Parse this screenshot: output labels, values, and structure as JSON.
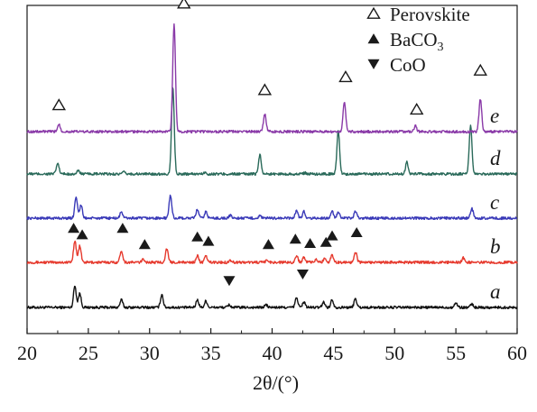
{
  "chart_data": {
    "type": "line",
    "title": "",
    "xlabel": "2θ/(°)",
    "ylabel": "",
    "xlim": [
      20,
      60
    ],
    "xticks": [
      "20",
      "25",
      "30",
      "35",
      "40",
      "45",
      "50",
      "55",
      "60"
    ],
    "grid": false,
    "legend_placement": "top-right",
    "legend": [
      {
        "label": "Perovskite",
        "marker": "open-triangle-up"
      },
      {
        "label": "BaCO",
        "sub": "3",
        "marker": "filled-triangle-up"
      },
      {
        "label": "CoO",
        "marker": "filled-triangle-down"
      }
    ],
    "series": [
      {
        "name": "a",
        "color": "#111111",
        "baseline_row": 0,
        "peaks": [
          [
            23.9,
            1.0
          ],
          [
            24.3,
            0.65
          ],
          [
            27.7,
            0.35
          ],
          [
            31.0,
            0.6
          ],
          [
            33.9,
            0.35
          ],
          [
            34.6,
            0.3
          ],
          [
            36.5,
            0.12
          ],
          [
            39.5,
            0.12
          ],
          [
            42.0,
            0.45
          ],
          [
            42.6,
            0.25
          ],
          [
            44.2,
            0.25
          ],
          [
            44.9,
            0.35
          ],
          [
            46.8,
            0.4
          ],
          [
            55.0,
            0.22
          ],
          [
            56.3,
            0.15
          ]
        ]
      },
      {
        "name": "b",
        "color": "#e63a2e",
        "baseline_row": 1,
        "peaks": [
          [
            23.9,
            1.0
          ],
          [
            24.3,
            0.75
          ],
          [
            27.7,
            0.55
          ],
          [
            29.5,
            0.15
          ],
          [
            31.4,
            0.62
          ],
          [
            33.9,
            0.3
          ],
          [
            34.6,
            0.28
          ],
          [
            36.6,
            0.1
          ],
          [
            39.6,
            0.1
          ],
          [
            42.0,
            0.3
          ],
          [
            42.6,
            0.25
          ],
          [
            43.6,
            0.12
          ],
          [
            44.3,
            0.2
          ],
          [
            44.9,
            0.35
          ],
          [
            46.8,
            0.5
          ],
          [
            55.6,
            0.2
          ]
        ]
      },
      {
        "name": "c",
        "color": "#3a3ab8",
        "baseline_row": 2,
        "peaks": [
          [
            24.0,
            1.0
          ],
          [
            24.4,
            0.6
          ],
          [
            27.7,
            0.3
          ],
          [
            31.7,
            1.05
          ],
          [
            33.9,
            0.4
          ],
          [
            34.6,
            0.3
          ],
          [
            36.6,
            0.12
          ],
          [
            39.0,
            0.1
          ],
          [
            42.0,
            0.35
          ],
          [
            42.6,
            0.3
          ],
          [
            44.9,
            0.3
          ],
          [
            45.4,
            0.25
          ],
          [
            46.8,
            0.3
          ],
          [
            56.3,
            0.45
          ]
        ]
      },
      {
        "name": "d",
        "color": "#2a6a5a",
        "baseline_row": 3,
        "peaks": [
          [
            22.5,
            0.5
          ],
          [
            24.2,
            0.15
          ],
          [
            27.9,
            0.08
          ],
          [
            31.9,
            4.0
          ],
          [
            34.5,
            0.06
          ],
          [
            39.0,
            0.9
          ],
          [
            42.7,
            0.05
          ],
          [
            45.4,
            2.0
          ],
          [
            51.0,
            0.55
          ],
          [
            56.2,
            2.2
          ]
        ]
      },
      {
        "name": "e",
        "color": "#8a3aa8",
        "baseline_row": 4,
        "peaks": [
          [
            22.6,
            0.35
          ],
          [
            32.0,
            5.0
          ],
          [
            39.4,
            0.8
          ],
          [
            45.9,
            1.4
          ],
          [
            51.7,
            0.25
          ],
          [
            57.0,
            1.5
          ]
        ]
      }
    ],
    "markers": [
      {
        "type": "perovskite",
        "x": 22.6,
        "y_row": 4,
        "h": 0.9
      },
      {
        "type": "perovskite",
        "x": 32.8,
        "y_row": 4,
        "h": 5.6
      },
      {
        "type": "perovskite",
        "x": 39.4,
        "y_row": 4,
        "h": 1.6
      },
      {
        "type": "perovskite",
        "x": 46.0,
        "y_row": 4,
        "h": 2.2
      },
      {
        "type": "perovskite",
        "x": 51.8,
        "y_row": 4,
        "h": 0.7
      },
      {
        "type": "perovskite",
        "x": 57.0,
        "y_row": 4,
        "h": 2.5
      },
      {
        "type": "baco3",
        "x": 23.8,
        "y_row": 1,
        "h": 1.25
      },
      {
        "type": "baco3",
        "x": 24.5,
        "y_row": 1,
        "h": 0.95
      },
      {
        "type": "baco3",
        "x": 27.8,
        "y_row": 1,
        "h": 1.25
      },
      {
        "type": "baco3",
        "x": 29.6,
        "y_row": 1,
        "h": 0.5
      },
      {
        "type": "baco3",
        "x": 33.9,
        "y_row": 1,
        "h": 0.85
      },
      {
        "type": "baco3",
        "x": 34.8,
        "y_row": 1,
        "h": 0.65
      },
      {
        "type": "baco3",
        "x": 39.7,
        "y_row": 1,
        "h": 0.5
      },
      {
        "type": "baco3",
        "x": 41.9,
        "y_row": 1,
        "h": 0.75
      },
      {
        "type": "baco3",
        "x": 43.1,
        "y_row": 1,
        "h": 0.55
      },
      {
        "type": "baco3",
        "x": 44.4,
        "y_row": 1,
        "h": 0.6
      },
      {
        "type": "baco3",
        "x": 44.9,
        "y_row": 1,
        "h": 0.9
      },
      {
        "type": "baco3",
        "x": 46.9,
        "y_row": 1,
        "h": 1.05
      },
      {
        "type": "coo",
        "x": 36.5,
        "y_row": 0,
        "h": 0.9
      },
      {
        "type": "coo",
        "x": 42.5,
        "y_row": 0,
        "h": 1.2
      }
    ]
  }
}
